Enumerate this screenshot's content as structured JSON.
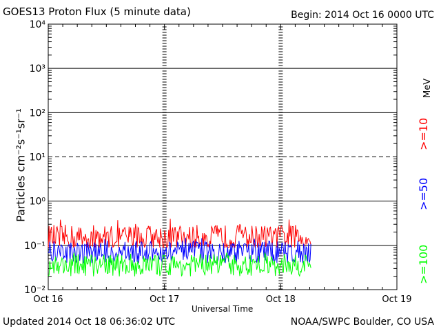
{
  "header": {
    "title": "GOES13 Proton Flux (5 minute data)",
    "begin": "Begin: 2014 Oct 16 0000 UTC"
  },
  "footer": {
    "updated": "Updated 2014 Oct 18 06:36:02 UTC",
    "credit": "NOAA/SWPC Boulder, CO USA"
  },
  "chart_data": {
    "type": "line",
    "title": "GOES13 Proton Flux (5 minute data)",
    "xlabel": "Universal Time",
    "ylabel": "Particles cm⁻²s⁻¹sr⁻¹",
    "yscale": "log",
    "ylim": [
      0.01,
      10000
    ],
    "y_ticks": [
      "10⁻²",
      "10⁻¹",
      "10⁰",
      "10¹",
      "10²",
      "10³",
      "10⁴"
    ],
    "x_ticks": [
      "Oct 16",
      "Oct 17",
      "Oct 18",
      "Oct 19"
    ],
    "x_range_days": [
      0,
      3
    ],
    "data_end_day": 2.26,
    "unit_label": "MeV",
    "series": [
      {
        "name": ">=10",
        "color": "#ff0000",
        "typical": 0.15,
        "min": 0.09,
        "max": 0.4
      },
      {
        "name": ">=50",
        "color": "#0000ff",
        "typical": 0.07,
        "min": 0.04,
        "max": 0.15
      },
      {
        "name": ">=100",
        "color": "#00ff00",
        "typical": 0.035,
        "min": 0.02,
        "max": 0.07
      }
    ],
    "grid": "horizontal at each decade; dashed line at 10¹",
    "legend_placement": "right, rotated"
  }
}
